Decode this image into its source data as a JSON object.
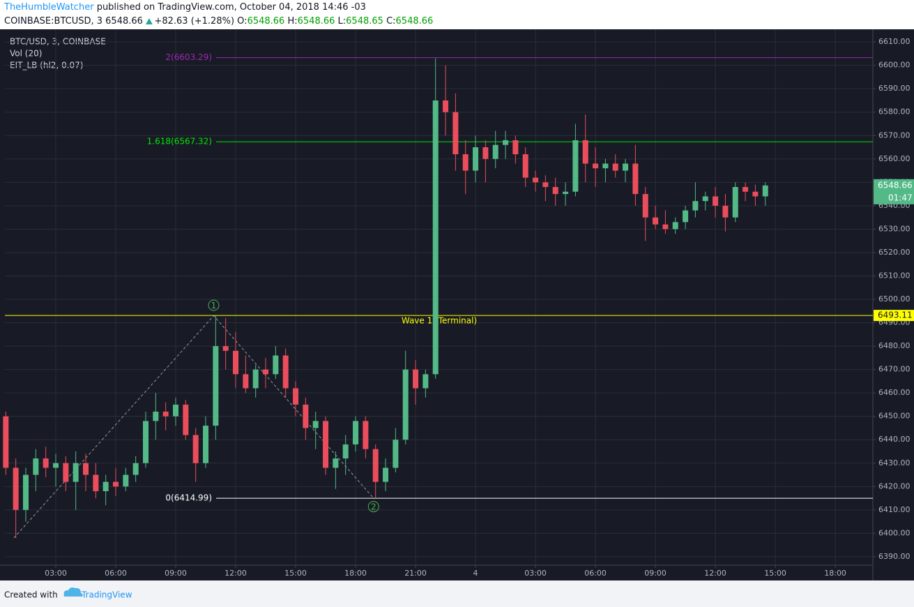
{
  "header": {
    "author": "TheHumbleWatcher",
    "published": "published on TradingView.com, October 04, 2018 14:46 -03",
    "symbol": "COINBASE:BTCUSD, 3",
    "price": "6548.66",
    "change": "+82.63 (+1.28%)",
    "ohlc": [
      {
        "label": "O:",
        "value": "6548.66"
      },
      {
        "label": "H:",
        "value": "6548.66"
      },
      {
        "label": "L:",
        "value": "6548.65"
      },
      {
        "label": "C:",
        "value": "6548.66"
      }
    ]
  },
  "legend": [
    "BTC/USD, 3, COINBASE",
    "Vol (20)",
    "EIT_LB (hl2, 0.07)"
  ],
  "chart_data": {
    "type": "candlestick",
    "x": [
      0.5,
      1,
      1.5,
      2,
      2.5,
      3,
      3.5,
      4,
      4.5,
      5,
      5.5,
      6,
      6.5,
      7,
      7.5,
      8,
      8.5,
      9,
      9.5,
      10,
      10.5,
      11,
      11.5,
      12,
      12.5,
      13,
      13.5,
      14,
      14.5,
      15,
      15.5,
      16,
      16.5,
      17,
      17.5,
      18,
      18.5,
      19,
      19.5,
      20,
      20.5,
      21,
      21.5,
      22,
      22.5,
      23,
      23.5,
      24,
      24.5,
      25,
      25.5,
      26,
      26.5,
      27,
      27.5,
      28,
      28.5,
      29,
      29.5,
      30,
      30.5,
      31,
      31.5,
      32,
      32.5,
      33,
      33.5,
      34,
      34.5,
      35,
      35.5,
      36,
      36.5,
      37,
      37.5,
      38,
      38.5
    ],
    "open": [
      6450,
      6428,
      6410,
      6425,
      6432,
      6428,
      6430,
      6422,
      6430,
      6425,
      6418,
      6422,
      6420,
      6425,
      6430,
      6448,
      6452,
      6450,
      6455,
      6442,
      6430,
      6446,
      6480,
      6478,
      6468,
      6462,
      6470,
      6468,
      6476,
      6462,
      6455,
      6445,
      6448,
      6428,
      6432,
      6438,
      6448,
      6436,
      6422,
      6428,
      6440,
      6470,
      6462,
      6468,
      6585,
      6580,
      6562,
      6555,
      6565,
      6560,
      6566,
      6568,
      6562,
      6552,
      6550,
      6548,
      6545,
      6546,
      6568,
      6558,
      6556,
      6558,
      6555,
      6558,
      6545,
      6535,
      6532,
      6530,
      6533,
      6538,
      6542,
      6544,
      6540,
      6535,
      6548,
      6546,
      6544
    ],
    "high": [
      6452,
      6432,
      6428,
      6436,
      6437,
      6434,
      6433,
      6435,
      6434,
      6430,
      6425,
      6428,
      6428,
      6433,
      6452,
      6460,
      6456,
      6458,
      6457,
      6445,
      6450,
      6493,
      6492,
      6486,
      6476,
      6472,
      6475,
      6480,
      6479,
      6465,
      6458,
      6452,
      6450,
      6435,
      6442,
      6450,
      6450,
      6438,
      6432,
      6445,
      6478,
      6474,
      6470,
      6603,
      6600,
      6588,
      6568,
      6570,
      6568,
      6572,
      6572,
      6570,
      6565,
      6555,
      6553,
      6552,
      6550,
      6575,
      6579,
      6565,
      6560,
      6562,
      6560,
      6566,
      6548,
      6540,
      6538,
      6535,
      6540,
      6550,
      6546,
      6548,
      6545,
      6550,
      6550,
      6549,
      6550
    ],
    "low": [
      6425,
      6398,
      6405,
      6418,
      6424,
      6420,
      6418,
      6410,
      6418,
      6415,
      6412,
      6416,
      6418,
      6422,
      6428,
      6440,
      6444,
      6446,
      6440,
      6422,
      6428,
      6440,
      6470,
      6462,
      6460,
      6458,
      6462,
      6466,
      6458,
      6450,
      6440,
      6436,
      6425,
      6419,
      6425,
      6435,
      6432,
      6415,
      6418,
      6426,
      6438,
      6455,
      6458,
      6466,
      6570,
      6555,
      6545,
      6550,
      6550,
      6556,
      6560,
      6558,
      6548,
      6546,
      6542,
      6540,
      6540,
      6544,
      6550,
      6548,
      6550,
      6552,
      6550,
      6540,
      6525,
      6530,
      6528,
      6528,
      6530,
      6535,
      6538,
      6535,
      6529,
      6533,
      6542,
      6540,
      6540
    ],
    "close": [
      6428,
      6410,
      6425,
      6432,
      6428,
      6430,
      6422,
      6430,
      6425,
      6418,
      6422,
      6420,
      6425,
      6430,
      6448,
      6452,
      6450,
      6455,
      6442,
      6430,
      6446,
      6480,
      6478,
      6468,
      6462,
      6470,
      6468,
      6476,
      6462,
      6455,
      6445,
      6448,
      6428,
      6432,
      6438,
      6448,
      6436,
      6422,
      6428,
      6440,
      6470,
      6462,
      6468,
      6585,
      6580,
      6562,
      6555,
      6565,
      6560,
      6566,
      6568,
      6562,
      6552,
      6550,
      6548,
      6545,
      6546,
      6568,
      6558,
      6556,
      6558,
      6555,
      6558,
      6545,
      6535,
      6532,
      6530,
      6533,
      6538,
      6542,
      6544,
      6540,
      6535,
      6548,
      6546,
      6544,
      6548.66
    ],
    "up_color": "#53b987",
    "down_color": "#eb4d5c",
    "xlim": [
      0.454,
      43.88
    ],
    "ylim": [
      6386.4,
      6615.4
    ],
    "grid": true,
    "xticks": [
      {
        "value": 3,
        "label": "03:00"
      },
      {
        "value": 6,
        "label": "06:00"
      },
      {
        "value": 9,
        "label": "09:00"
      },
      {
        "value": 12,
        "label": "12:00"
      },
      {
        "value": 15,
        "label": "15:00"
      },
      {
        "value": 18,
        "label": "18:00"
      },
      {
        "value": 21,
        "label": "21:00"
      },
      {
        "value": 24,
        "label": "4"
      },
      {
        "value": 27,
        "label": "03:00"
      },
      {
        "value": 30,
        "label": "06:00"
      },
      {
        "value": 33,
        "label": "09:00"
      },
      {
        "value": 36,
        "label": "12:00"
      },
      {
        "value": 39,
        "label": "15:00"
      },
      {
        "value": 42,
        "label": "18:00"
      }
    ],
    "yticks": [
      {
        "value": 6390,
        "label": "6390.00"
      },
      {
        "value": 6400,
        "label": "6400.00"
      },
      {
        "value": 6410,
        "label": "6410.00"
      },
      {
        "value": 6420,
        "label": "6420.00"
      },
      {
        "value": 6430,
        "label": "6430.00"
      },
      {
        "value": 6440,
        "label": "6440.00"
      },
      {
        "value": 6450,
        "label": "6450.00"
      },
      {
        "value": 6460,
        "label": "6460.00"
      },
      {
        "value": 6470,
        "label": "6470.00"
      },
      {
        "value": 6480,
        "label": "6480.00"
      },
      {
        "value": 6490,
        "label": "6490.00"
      },
      {
        "value": 6500,
        "label": "6500.00"
      },
      {
        "value": 6510,
        "label": "6510.00"
      },
      {
        "value": 6520,
        "label": "6520.00"
      },
      {
        "value": 6530,
        "label": "6530.00"
      },
      {
        "value": 6540,
        "label": "6540.00"
      },
      {
        "value": 6550,
        "label": "6550.00"
      },
      {
        "value": 6560,
        "label": "6560.00"
      },
      {
        "value": 6570,
        "label": "6570.00"
      },
      {
        "value": 6580,
        "label": "6580.00"
      },
      {
        "value": 6590,
        "label": "6590.00"
      },
      {
        "value": 6600,
        "label": "6600.00"
      },
      {
        "value": 6610,
        "label": "6610.00"
      }
    ],
    "levels": [
      {
        "value": 6603.29,
        "label": "2(6603.29)",
        "color": "#9c27b0"
      },
      {
        "value": 6567.32,
        "label": "1.618(6567.32)",
        "color": "#00e600"
      },
      {
        "value": 6414.99,
        "label": "0(6414.99)",
        "color": "#ffffff"
      }
    ],
    "marker": {
      "value": 6493.11,
      "label": "6493.11",
      "note": "Wave 1 (Terminal)",
      "color": "#ffff00"
    },
    "wave": {
      "x": [
        0.9,
        10.9,
        18.9
      ],
      "y": [
        6398,
        6493,
        6415
      ],
      "labels": [
        null,
        "1",
        "2"
      ]
    },
    "last_price": {
      "value": 6548.66,
      "label": "6548.66"
    },
    "countdown": "01:47"
  },
  "footer": {
    "created_with": "Created with",
    "brand": "TradingView"
  }
}
